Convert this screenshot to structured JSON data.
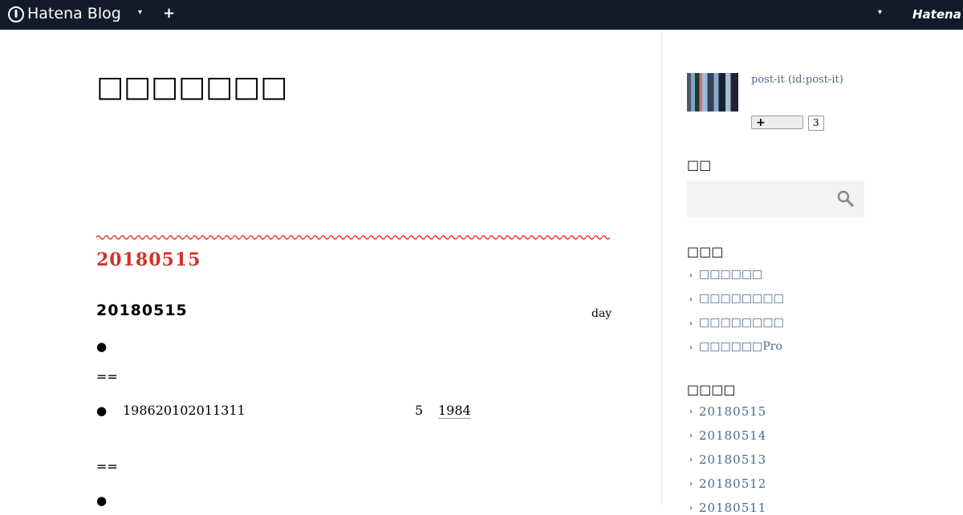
{
  "header": {
    "logo": "Hatena Blog",
    "brand": "Hatena"
  },
  "blog": {
    "title": "□□□□□□□"
  },
  "entry": {
    "date": "20180515",
    "title": "20180515",
    "category": "day",
    "lines": [
      {
        "bullet": "●"
      },
      {
        "text": "=="
      },
      {
        "bullet": "●",
        "parts": [
          "198620102011311",
          "5",
          "1984"
        ]
      },
      {
        "text": "=="
      },
      {
        "bullet": "●"
      }
    ]
  },
  "sidebar": {
    "profile": {
      "name": "post-it (id:post-it)",
      "count": "3"
    },
    "search": {
      "heading": "□□"
    },
    "links": {
      "heading": "□□□",
      "items": [
        "□□□□□□",
        "□□□□□□□□",
        "□□□□□□□□",
        "□□□□□□Pro"
      ]
    },
    "archive": {
      "heading": "□□□□",
      "items": [
        "20180515",
        "20180514",
        "20180513",
        "20180512",
        "20180511"
      ]
    }
  }
}
